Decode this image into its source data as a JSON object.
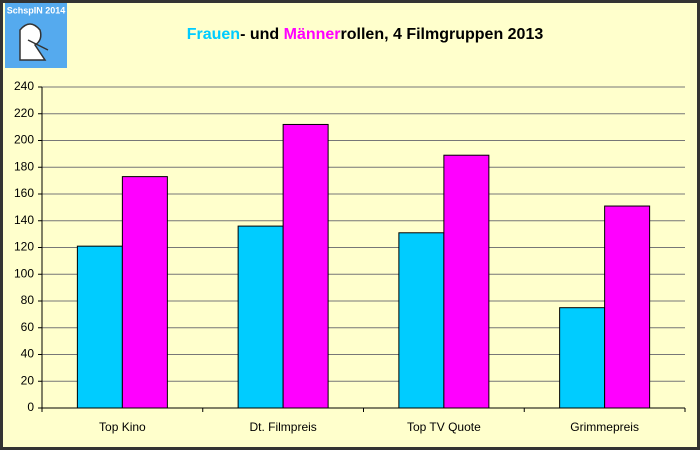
{
  "chart_data": {
    "type": "bar",
    "title_parts": [
      "- und ",
      "rollen, 4 Filmgruppen 2013"
    ],
    "logo": "SchspIN 2014",
    "categories": [
      "Top Kino",
      "Dt. Filmpreis",
      "Top TV Quote",
      "Grimmepreis"
    ],
    "series": [
      {
        "name": "Frauen",
        "color": "#00ccff",
        "values": [
          121,
          136,
          131,
          75
        ]
      },
      {
        "name": "Männer",
        "color": "#ff00ff",
        "values": [
          173,
          212,
          189,
          151
        ]
      }
    ],
    "ylim": [
      0,
      240
    ],
    "yticks": [
      0,
      20,
      40,
      60,
      80,
      100,
      120,
      140,
      160,
      180,
      200,
      220,
      240
    ],
    "grid": true
  }
}
